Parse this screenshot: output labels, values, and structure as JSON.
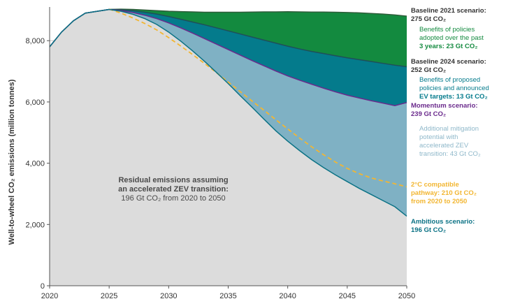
{
  "chart_data": {
    "type": "area",
    "ylabel": "Well-to-wheel CO₂ emissions (million tonnes)",
    "xlim": [
      2020,
      2050
    ],
    "ylim": [
      0,
      9100
    ],
    "x_ticks": [
      2020,
      2025,
      2030,
      2035,
      2040,
      2045,
      2050
    ],
    "y_ticks": [
      0,
      2000,
      4000,
      6000,
      8000
    ],
    "x_tick_labels": [
      "2020",
      "2025",
      "2030",
      "2035",
      "2040",
      "2045",
      "2050"
    ],
    "y_tick_labels": [
      "0",
      "2,000",
      "4,000",
      "6,000",
      "8,000"
    ],
    "grid": "horizontal",
    "x": [
      2020,
      2021,
      2022,
      2023,
      2024,
      2025,
      2026,
      2027,
      2028,
      2029,
      2030,
      2031,
      2032,
      2033,
      2034,
      2035,
      2036,
      2037,
      2038,
      2039,
      2040,
      2041,
      2042,
      2043,
      2044,
      2045,
      2046,
      2047,
      2048,
      2049,
      2050
    ],
    "series": [
      {
        "name": "Baseline 2021 scenario",
        "color": "#0f8a3e",
        "values": [
          7800,
          8280,
          8650,
          8900,
          8960,
          9020,
          9030,
          9020,
          9000,
          8980,
          8960,
          8950,
          8940,
          8930,
          8930,
          8930,
          8930,
          8935,
          8940,
          8940,
          8945,
          8940,
          8935,
          8935,
          8930,
          8920,
          8910,
          8890,
          8870,
          8840,
          8800
        ]
      },
      {
        "name": "Baseline 2024 scenario",
        "color": "#007b8a",
        "values": [
          7800,
          8280,
          8650,
          8900,
          8960,
          9020,
          9010,
          8980,
          8930,
          8870,
          8790,
          8700,
          8610,
          8520,
          8420,
          8320,
          8220,
          8120,
          8020,
          7920,
          7820,
          7730,
          7650,
          7580,
          7510,
          7440,
          7380,
          7320,
          7260,
          7200,
          7150
        ]
      },
      {
        "name": "Momentum scenario",
        "color": "#6a2a8c",
        "values": [
          7800,
          8280,
          8650,
          8900,
          8960,
          9020,
          8980,
          8920,
          8830,
          8720,
          8580,
          8420,
          8250,
          8070,
          7890,
          7710,
          7530,
          7350,
          7180,
          7010,
          6850,
          6710,
          6580,
          6450,
          6330,
          6220,
          6130,
          6040,
          5960,
          5880,
          5980
        ]
      },
      {
        "name": "2°C compatible pathway",
        "color": "#f2b632",
        "dashed": true,
        "values": [
          null,
          null,
          null,
          null,
          null,
          9030,
          8900,
          8740,
          8560,
          8350,
          8100,
          7830,
          7550,
          7260,
          6960,
          6650,
          6340,
          6030,
          5730,
          5420,
          5120,
          4820,
          4540,
          4280,
          4040,
          3830,
          3660,
          3520,
          3420,
          3330,
          3230
        ]
      },
      {
        "name": "Ambitious scenario",
        "color": "#0b7285",
        "values": [
          7800,
          8280,
          8650,
          8900,
          8960,
          9020,
          8960,
          8860,
          8720,
          8530,
          8280,
          7990,
          7670,
          7330,
          6970,
          6600,
          6210,
          5830,
          5440,
          5060,
          4720,
          4410,
          4120,
          3860,
          3620,
          3400,
          3180,
          2980,
          2780,
          2580,
          2270
        ]
      }
    ],
    "bands": [
      {
        "between": [
          "Baseline 2021 scenario",
          "Baseline 2024 scenario"
        ],
        "color": "#138a3f",
        "label": "Benefits of policies adopted over the past 3 years: 23 Gt CO₂"
      },
      {
        "between": [
          "Baseline 2024 scenario",
          "Momentum scenario"
        ],
        "color": "#047b8c",
        "label": "Benefits of proposed policies and announced EV targets: 13 Gt CO₂"
      },
      {
        "between": [
          "Momentum scenario",
          "Ambitious scenario"
        ],
        "color": "#7fb1c4",
        "label": "Additional mitigation potential with accelerated ZEV transition: 43 Gt CO₂"
      },
      {
        "between": [
          "Ambitious scenario",
          "zero"
        ],
        "color": "#dcdcdc",
        "label": "Residual emissions assuming an accelerated ZEV transition: 196 Gt CO₂ from 2020 to 2050"
      }
    ],
    "annotations": {
      "baseline2021": {
        "title": "Baseline 2021 scenario:",
        "value": "275 Gt CO₂"
      },
      "benefits_adopted": {
        "lines": [
          "Benefits of policies",
          "adopted over the past",
          "3 years: 23 Gt CO₂"
        ]
      },
      "baseline2024": {
        "title": "Baseline 2024 scenario:",
        "value": "252 Gt CO₂"
      },
      "benefits_proposed": {
        "lines": [
          "Benefits of proposed",
          "policies and announced",
          "EV targets: 13 Gt CO₂"
        ]
      },
      "momentum": {
        "title": "Momentum scenario:",
        "value": "239 Gt CO₂"
      },
      "additional": {
        "lines": [
          "Additional mitigation",
          "potential with",
          "accelerated ZEV",
          "transition: 43 Gt CO₂"
        ]
      },
      "two_degree": {
        "lines": [
          "2°C compatible",
          "pathway: 210 Gt CO₂",
          "from 2020 to 2050"
        ]
      },
      "ambitious": {
        "title": "Ambitious scenario:",
        "value": "196 Gt CO₂"
      },
      "residual": {
        "lines": [
          "Residual emissions assuming",
          "an accelerated ZEV transition:",
          "196 Gt CO₂ from 2020 to 2050"
        ]
      }
    }
  }
}
